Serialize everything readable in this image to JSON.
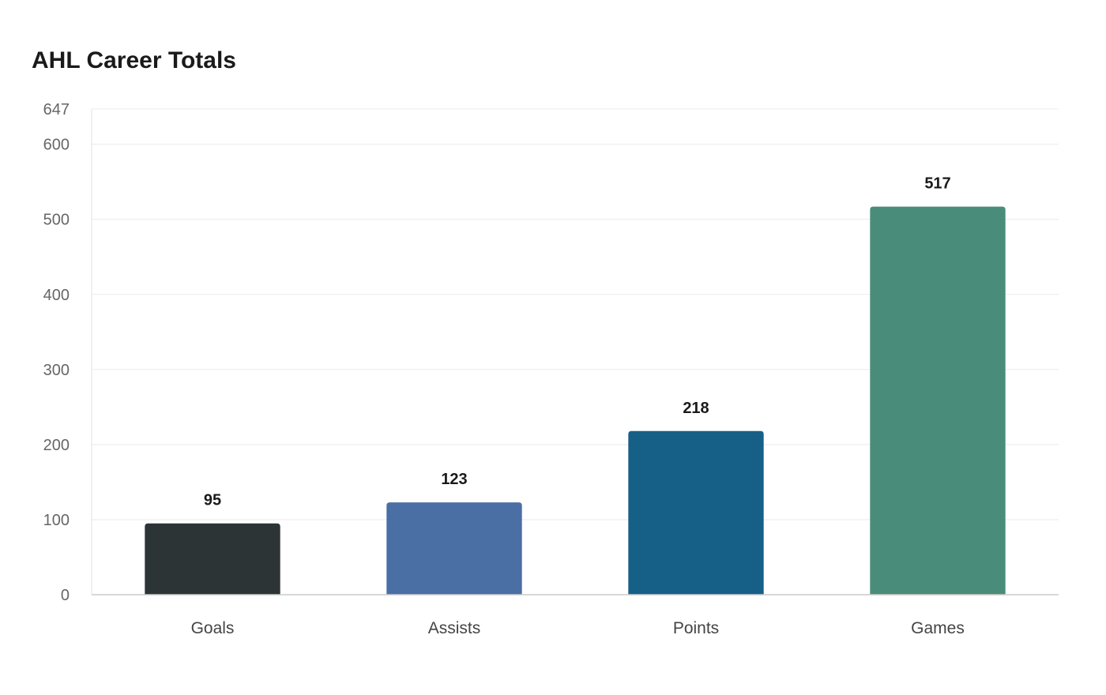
{
  "chart_data": {
    "type": "bar",
    "title": "AHL Career Totals",
    "xlabel": "",
    "ylabel": "",
    "categories": [
      "Goals",
      "Assists",
      "Points",
      "Games"
    ],
    "values": [
      95,
      123,
      218,
      517
    ],
    "colors": [
      "#2d3436",
      "#4a6fa5",
      "#166088",
      "#4a8c7a"
    ],
    "ylim": [
      0,
      647
    ],
    "yticks": [
      0,
      100,
      200,
      300,
      400,
      500,
      600,
      647
    ],
    "grid": true,
    "data_labels": true
  }
}
